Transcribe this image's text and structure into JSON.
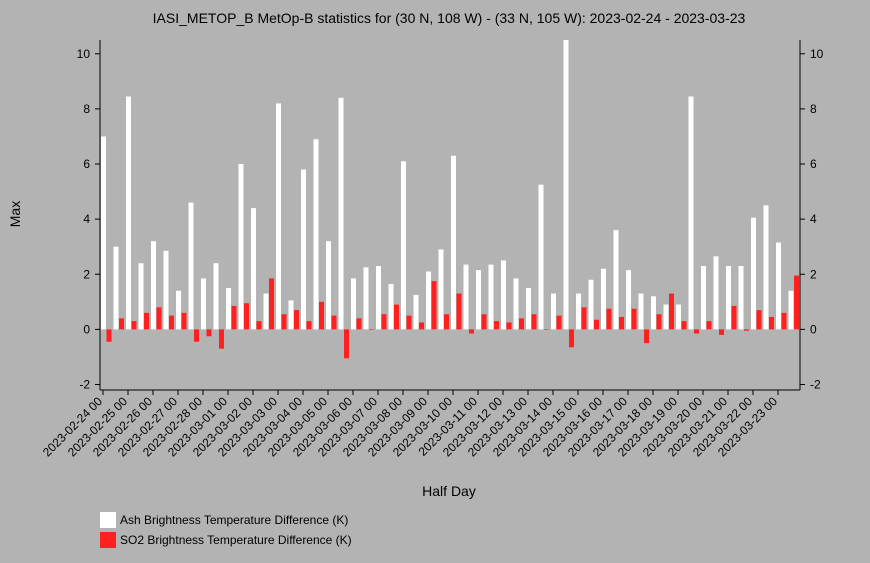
{
  "chart_data": {
    "type": "bar",
    "title": "IASI_METOP_B MetOp-B statistics for (30 N, 108 W) - (33 N, 105 W): 2023-02-24 - 2023-03-23",
    "xlabel": "Half Day",
    "ylabel": "Max",
    "ylim": [
      -2.2,
      10.5
    ],
    "yticks": [
      -2,
      0,
      2,
      4,
      6,
      8,
      10
    ],
    "grid": false,
    "legend_position": "bottom-left",
    "tick_labels": [
      "2023-02-24 00",
      "2023-02-25 00",
      "2023-02-26 00",
      "2023-02-27 00",
      "2023-02-28 00",
      "2023-03-01 00",
      "2023-03-02 00",
      "2023-03-03 00",
      "2023-03-04 00",
      "2023-03-05 00",
      "2023-03-06 00",
      "2023-03-07 00",
      "2023-03-08 00",
      "2023-03-09 00",
      "2023-03-10 00",
      "2023-03-11 00",
      "2023-03-12 00",
      "2023-03-13 00",
      "2023-03-14 00",
      "2023-03-15 00",
      "2023-03-16 00",
      "2023-03-17 00",
      "2023-03-18 00",
      "2023-03-19 00",
      "2023-03-20 00",
      "2023-03-21 00",
      "2023-03-22 00",
      "2023-03-23 00"
    ],
    "series": [
      {
        "name": "Ash Brightness Temperature Difference (K)",
        "color": "#ffffff",
        "values": [
          7.0,
          3.0,
          8.45,
          2.4,
          3.2,
          2.85,
          1.4,
          4.6,
          1.85,
          2.4,
          1.5,
          6.0,
          4.4,
          1.3,
          8.2,
          1.05,
          5.8,
          6.9,
          3.2,
          8.4,
          1.85,
          2.25,
          2.3,
          1.65,
          6.1,
          1.25,
          2.1,
          2.9,
          6.3,
          2.35,
          2.15,
          2.35,
          2.5,
          1.85,
          1.5,
          5.25,
          1.3,
          10.5,
          1.3,
          1.8,
          2.2,
          3.6,
          2.15,
          1.3,
          1.2,
          0.9,
          0.9,
          8.45,
          2.3,
          2.65,
          2.3,
          2.3,
          4.05,
          4.5,
          3.15,
          1.4
        ]
      },
      {
        "name": "SO2 Brightness Temperature Difference (K)",
        "color": "#ff2020",
        "values": [
          -0.45,
          0.4,
          0.3,
          0.6,
          0.8,
          0.5,
          0.6,
          -0.45,
          -0.25,
          -0.7,
          0.85,
          0.95,
          0.3,
          1.85,
          0.55,
          0.7,
          0.3,
          1.0,
          0.5,
          -1.05,
          0.4,
          0.0,
          0.55,
          0.9,
          0.5,
          0.25,
          1.75,
          0.55,
          1.3,
          -0.15,
          0.55,
          0.3,
          0.25,
          0.4,
          0.55,
          0.0,
          0.5,
          -0.65,
          0.8,
          0.35,
          0.75,
          0.45,
          0.75,
          -0.5,
          0.55,
          1.3,
          0.3,
          -0.15,
          0.3,
          -0.2,
          0.85,
          -0.05,
          0.7,
          0.45,
          0.6,
          1.95
        ]
      }
    ]
  }
}
